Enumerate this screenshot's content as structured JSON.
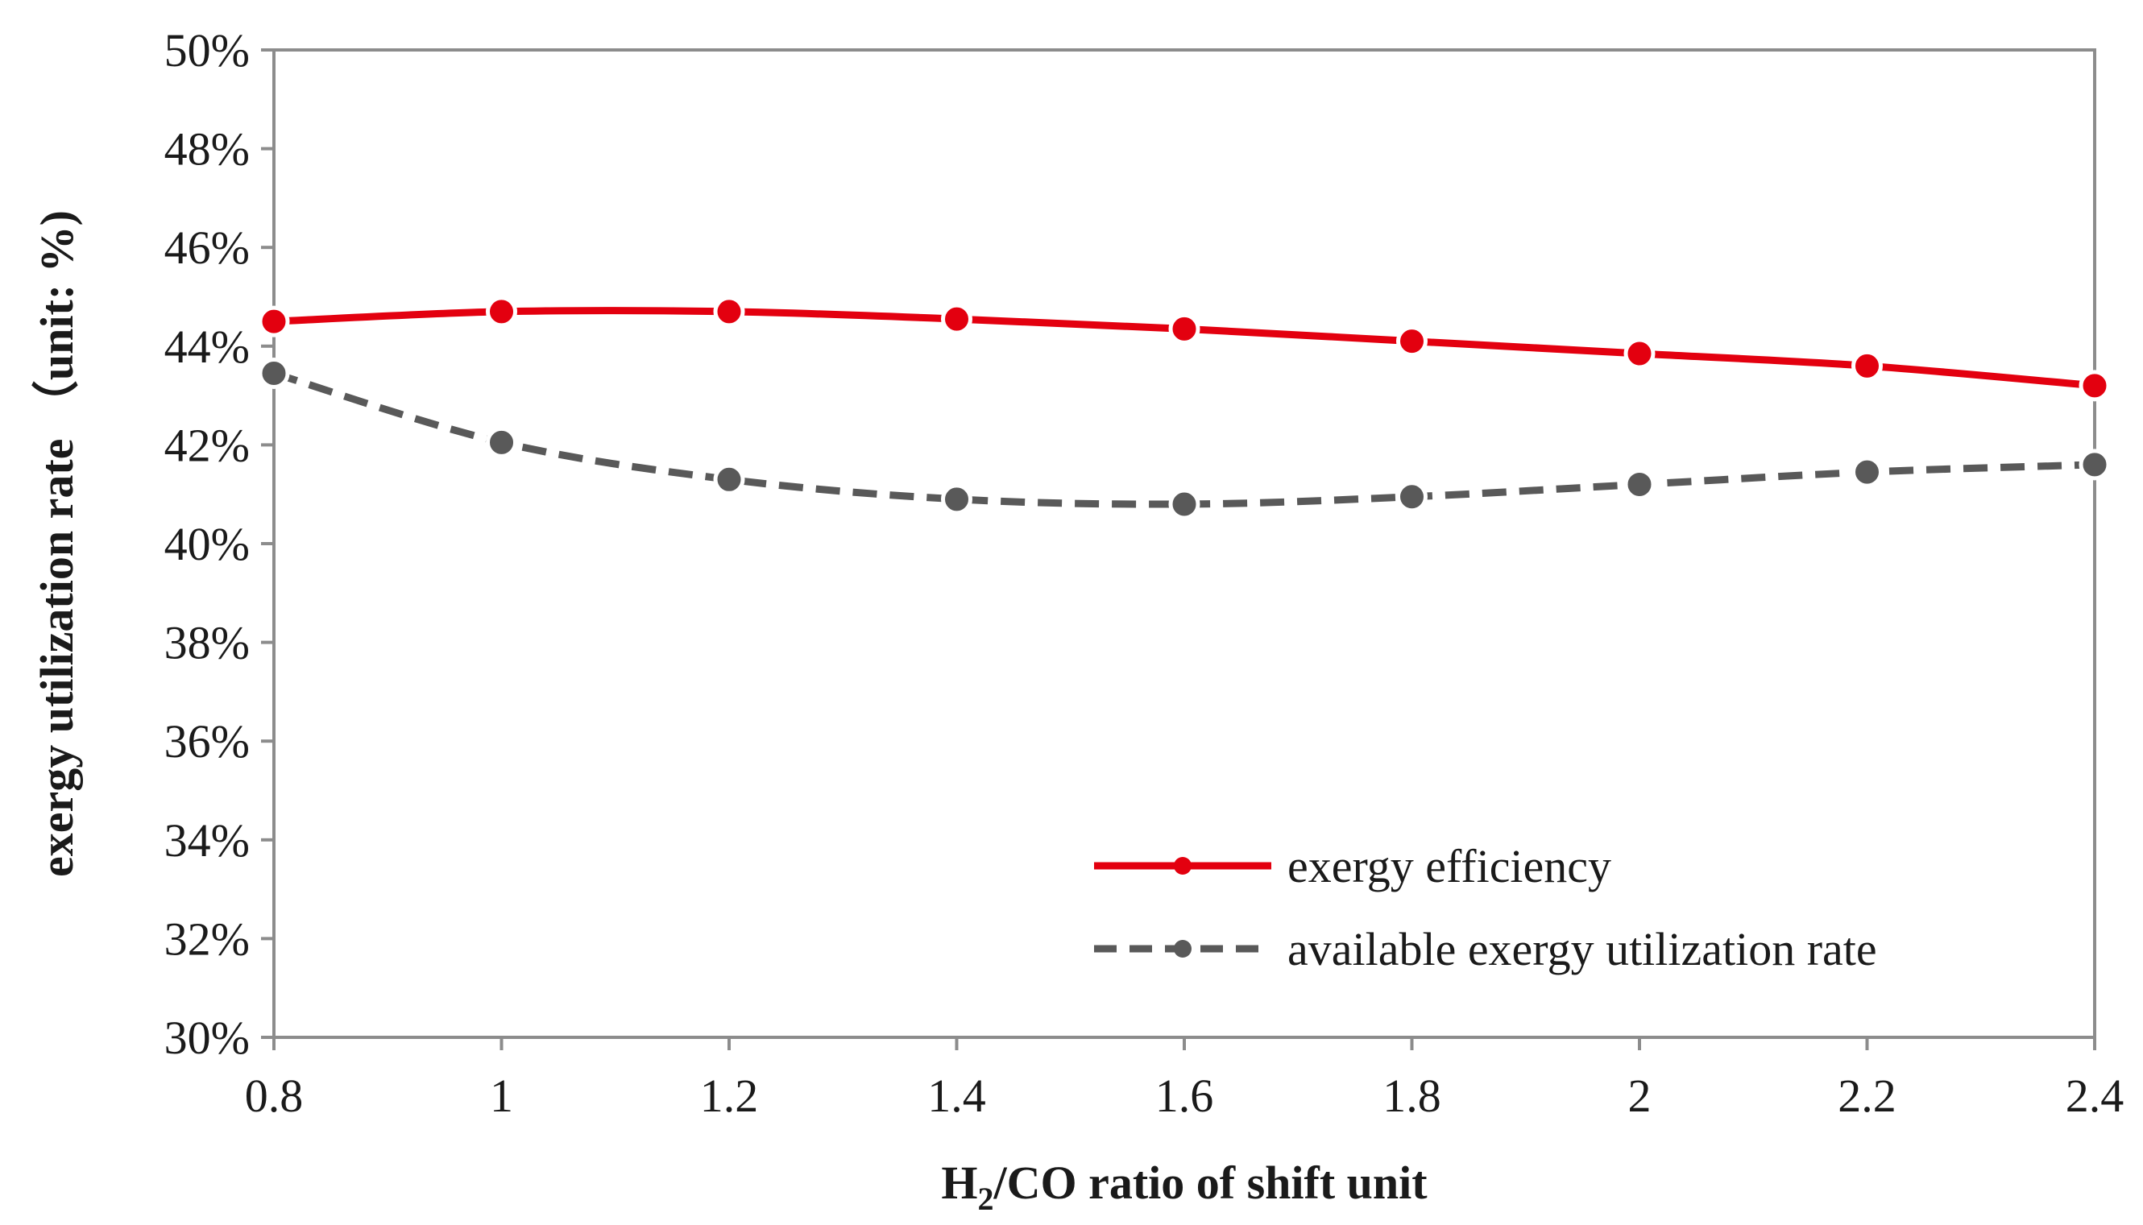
{
  "chart_data": {
    "type": "line",
    "title": "",
    "xlabel_main": "H",
    "xlabel_sub": "2",
    "xlabel_rest": "/CO ratio of shift unit",
    "ylabel": "exergy utilization rate （unit: %)",
    "x": [
      0.8,
      1,
      1.2,
      1.4,
      1.6,
      1.8,
      2,
      2.2,
      2.4
    ],
    "x_tick_labels": [
      "0.8",
      "1",
      "1.2",
      "1.4",
      "1.6",
      "1.8",
      "2",
      "2.2",
      "2.4"
    ],
    "xlim": [
      0.8,
      2.4
    ],
    "ylim": [
      30,
      50
    ],
    "y_ticks": [
      30,
      32,
      34,
      36,
      38,
      40,
      42,
      44,
      46,
      48,
      50
    ],
    "y_tick_labels": [
      "30%",
      "32%",
      "34%",
      "36%",
      "38%",
      "40%",
      "42%",
      "44%",
      "46%",
      "48%",
      "50%"
    ],
    "grid": false,
    "legend_position": "lower-right",
    "series": [
      {
        "name": "exergy efficiency",
        "values": [
          44.5,
          44.7,
          44.7,
          44.55,
          44.35,
          44.1,
          43.85,
          43.6,
          43.2
        ],
        "color": "#e3000f",
        "style": "solid"
      },
      {
        "name": "available exergy utilization rate",
        "values": [
          43.45,
          42.05,
          41.3,
          40.9,
          40.8,
          40.95,
          41.2,
          41.45,
          41.6
        ],
        "color": "#595959",
        "style": "dashed"
      }
    ]
  }
}
